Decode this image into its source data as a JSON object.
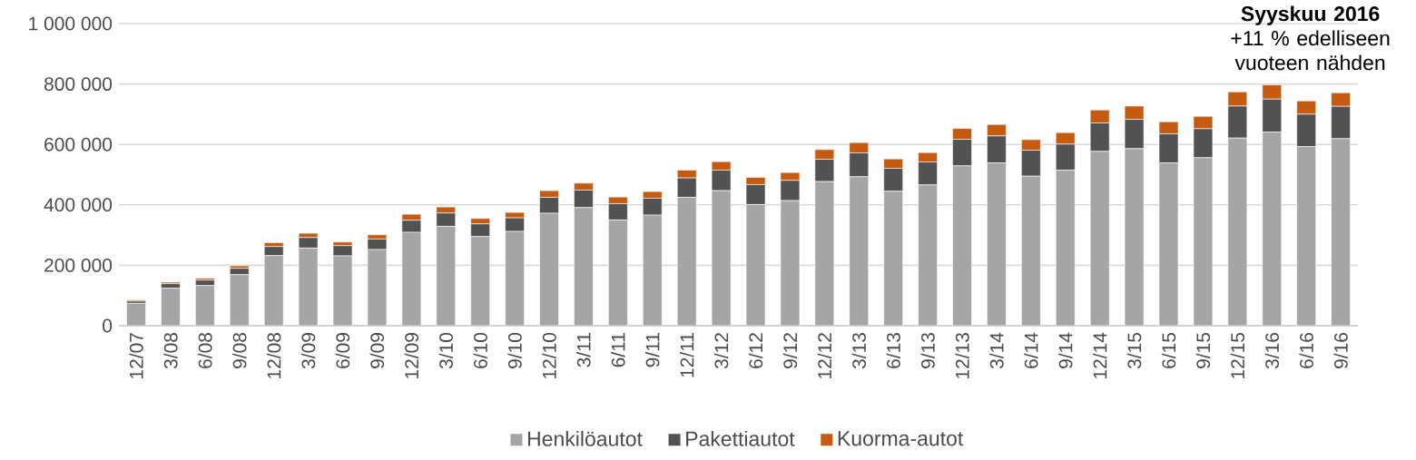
{
  "chart_data": {
    "type": "bar",
    "stacked": true,
    "categories": [
      "12/07",
      "3/08",
      "6/08",
      "9/08",
      "12/08",
      "3/09",
      "6/09",
      "9/09",
      "12/09",
      "3/10",
      "6/10",
      "9/10",
      "12/10",
      "3/11",
      "6/11",
      "9/11",
      "12/11",
      "3/12",
      "6/12",
      "9/12",
      "12/12",
      "3/13",
      "6/13",
      "9/13",
      "12/13",
      "3/14",
      "6/14",
      "9/14",
      "12/14",
      "3/15",
      "6/15",
      "9/15",
      "12/15",
      "3/16",
      "6/16",
      "9/16"
    ],
    "series": [
      {
        "name": "Henkilöautot",
        "color": "#a5a5a5",
        "values": [
          74000,
          124000,
          133000,
          169000,
          232000,
          257000,
          231000,
          252000,
          309000,
          329000,
          295000,
          312000,
          372000,
          391000,
          350000,
          366000,
          425000,
          447000,
          401000,
          414000,
          477000,
          493000,
          445000,
          466000,
          529000,
          539000,
          495000,
          515000,
          577000,
          586000,
          539000,
          556000,
          621000,
          641000,
          593000,
          619000
        ]
      },
      {
        "name": "Pakettiautot",
        "color": "#525252",
        "values": [
          7000,
          15000,
          18000,
          21000,
          30000,
          35000,
          34000,
          35000,
          40000,
          44000,
          42000,
          45000,
          53000,
          58000,
          54000,
          56000,
          64000,
          68000,
          66000,
          67000,
          74000,
          79000,
          76000,
          76000,
          88000,
          89000,
          86000,
          86000,
          94000,
          97000,
          96000,
          96000,
          106000,
          109000,
          107000,
          107000
        ]
      },
      {
        "name": "Kuorma-autot",
        "color": "#c55a11",
        "values": [
          4000,
          5000,
          6000,
          8000,
          13000,
          14000,
          12000,
          14000,
          20000,
          20000,
          18000,
          18000,
          22000,
          23000,
          22000,
          22000,
          26000,
          28000,
          24000,
          26000,
          32000,
          34000,
          31000,
          31000,
          36000,
          38000,
          35000,
          38000,
          43000,
          44000,
          40000,
          41000,
          47000,
          47000,
          44000,
          45000
        ]
      }
    ],
    "ylim": [
      0,
      1000000
    ],
    "yticks": [
      {
        "value": 0,
        "label": "0"
      },
      {
        "value": 200000,
        "label": "200 000"
      },
      {
        "value": 400000,
        "label": "400 000"
      },
      {
        "value": 600000,
        "label": "600 000"
      },
      {
        "value": 800000,
        "label": "800 000"
      },
      {
        "value": 1000000,
        "label": "1 000 000"
      }
    ],
    "grid": "y",
    "legend": "bottom",
    "annotations": [
      "Syyskuu 2016",
      "+11 % edelliseen vuoteen nähden"
    ]
  }
}
